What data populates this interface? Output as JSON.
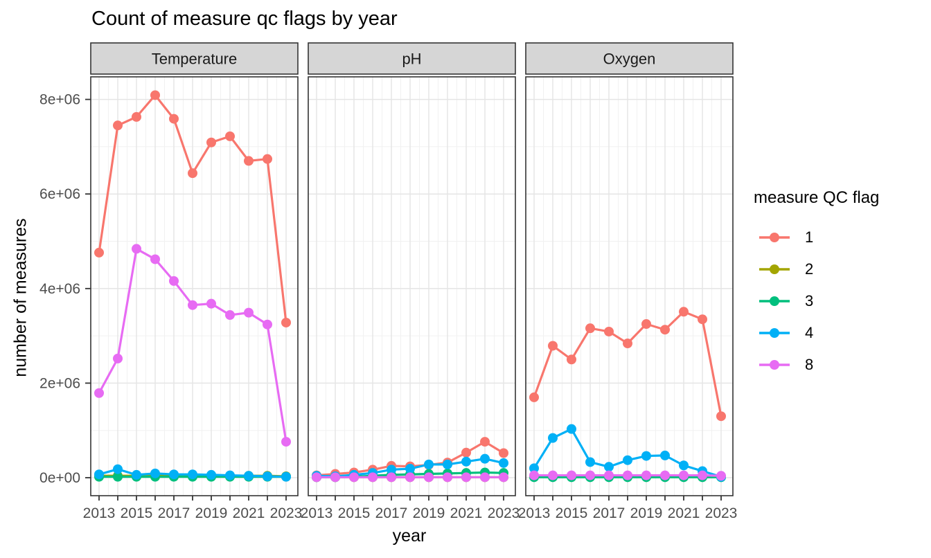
{
  "chart_data": {
    "type": "line",
    "title": "Count of measure qc flags by year",
    "xlabel": "year",
    "ylabel": "number of measures",
    "x": [
      2013,
      2014,
      2015,
      2016,
      2017,
      2018,
      2019,
      2020,
      2021,
      2022,
      2023
    ],
    "x_tick_labels": [
      "2013",
      "2015",
      "2017",
      "2019",
      "2021",
      "2023"
    ],
    "y_ticks": [
      {
        "value": 0,
        "label": "0e+00"
      },
      {
        "value": 2000000,
        "label": "2e+06"
      },
      {
        "value": 4000000,
        "label": "4e+06"
      },
      {
        "value": 6000000,
        "label": "6e+06"
      },
      {
        "value": 8000000,
        "label": "8e+06"
      }
    ],
    "y_minor_ticks": [
      1000000,
      3000000,
      5000000,
      7000000
    ],
    "ylim": [
      0,
      8500000
    ],
    "grid": true,
    "legend": {
      "title": "measure QC flag",
      "position": "right",
      "entries": [
        "1",
        "2",
        "3",
        "4",
        "8"
      ]
    },
    "series_colors": {
      "1": "#F8766D",
      "2": "#A3A500",
      "3": "#00BF7D",
      "4": "#00B0F6",
      "8": "#E76BF3"
    },
    "facets": [
      {
        "label": "Temperature",
        "series": [
          {
            "name": "1",
            "color": "#F8766D",
            "values": [
              4760000,
              7450000,
              7630000,
              8090000,
              7590000,
              6440000,
              7090000,
              7220000,
              6700000,
              6740000,
              3280000
            ]
          },
          {
            "name": "2",
            "color": "#A3A500",
            "values": [
              40000,
              40000,
              40000,
              40000,
              40000,
              40000,
              40000,
              40000,
              40000,
              40000,
              30000
            ]
          },
          {
            "name": "3",
            "color": "#00BF7D",
            "values": [
              20000,
              20000,
              20000,
              20000,
              20000,
              20000,
              20000,
              20000,
              20000,
              20000,
              20000
            ]
          },
          {
            "name": "4",
            "color": "#00B0F6",
            "values": [
              70000,
              180000,
              60000,
              90000,
              70000,
              70000,
              60000,
              50000,
              40000,
              30000,
              20000
            ]
          },
          {
            "name": "8",
            "color": "#E76BF3",
            "values": [
              1790000,
              2520000,
              4840000,
              4620000,
              4160000,
              3650000,
              3680000,
              3440000,
              3490000,
              3240000,
              760000
            ]
          }
        ]
      },
      {
        "label": "pH",
        "series": [
          {
            "name": "1",
            "color": "#F8766D",
            "values": [
              50000,
              80000,
              110000,
              170000,
              250000,
              240000,
              270000,
              320000,
              530000,
              760000,
              520000
            ]
          },
          {
            "name": "2",
            "color": "#A3A500",
            "values": [
              10000,
              10000,
              10000,
              10000,
              10000,
              10000,
              10000,
              10000,
              10000,
              10000,
              10000
            ]
          },
          {
            "name": "3",
            "color": "#00BF7D",
            "values": [
              10000,
              10000,
              20000,
              40000,
              60000,
              70000,
              80000,
              90000,
              100000,
              110000,
              100000
            ]
          },
          {
            "name": "4",
            "color": "#00B0F6",
            "values": [
              40000,
              30000,
              60000,
              100000,
              170000,
              190000,
              280000,
              280000,
              340000,
              400000,
              310000
            ]
          },
          {
            "name": "8",
            "color": "#E76BF3",
            "values": [
              10000,
              10000,
              10000,
              10000,
              10000,
              10000,
              10000,
              10000,
              10000,
              10000,
              10000
            ]
          }
        ]
      },
      {
        "label": "Oxygen",
        "series": [
          {
            "name": "1",
            "color": "#F8766D",
            "values": [
              1700000,
              2790000,
              2500000,
              3160000,
              3090000,
              2840000,
              3250000,
              3130000,
              3510000,
              3350000,
              1300000
            ]
          },
          {
            "name": "2",
            "color": "#A3A500",
            "values": [
              20000,
              20000,
              20000,
              20000,
              20000,
              20000,
              20000,
              20000,
              20000,
              20000,
              20000
            ]
          },
          {
            "name": "3",
            "color": "#00BF7D",
            "values": [
              10000,
              10000,
              10000,
              10000,
              10000,
              10000,
              10000,
              10000,
              10000,
              10000,
              10000
            ]
          },
          {
            "name": "4",
            "color": "#00B0F6",
            "values": [
              200000,
              840000,
              1030000,
              330000,
              230000,
              370000,
              460000,
              470000,
              260000,
              140000,
              20000
            ]
          },
          {
            "name": "8",
            "color": "#E76BF3",
            "values": [
              50000,
              50000,
              50000,
              50000,
              50000,
              50000,
              50000,
              50000,
              50000,
              50000,
              40000
            ]
          }
        ]
      }
    ]
  },
  "style_colors": {
    "strip_fill": "#d6d6d6",
    "panel_border": "#333333",
    "grid_major": "#e5e5e5",
    "grid_minor": "#f1f1f1",
    "tick_label": "#4d4d4d",
    "tick_mark": "#333333"
  }
}
